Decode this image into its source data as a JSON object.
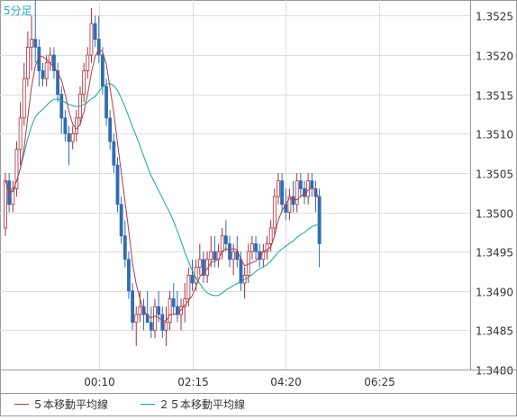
{
  "chart_data": {
    "type": "candlestick",
    "timeframe": "5分足",
    "ylim": [
      1.348,
      1.3527
    ],
    "y_ticks": [
      "1.3525",
      "1.3520",
      "1.3515",
      "1.3510",
      "1.3505",
      "1.3500",
      "1.3495",
      "1.3490",
      "1.3485",
      "1.3480"
    ],
    "x_ticks": [
      "00:10",
      "02:15",
      "04:20",
      "06:25"
    ],
    "x_tick_index": [
      25,
      50,
      75,
      100
    ],
    "legend": [
      {
        "name": "５本移動平均線",
        "color": "#b03a4a"
      },
      {
        "name": "２５本移動平均線",
        "color": "#1aa39a"
      }
    ],
    "colors": {
      "up": "#ffffff",
      "up_border": "#aa2d3c",
      "down": "#2f6db5",
      "grid": "#dddddd",
      "frame": "#999999",
      "label": "#333333"
    },
    "candles": [
      [
        1.3498,
        1.3505,
        1.3497,
        1.3504
      ],
      [
        1.3504,
        1.3505,
        1.35,
        1.3501
      ],
      [
        1.3501,
        1.3504,
        1.35,
        1.3503
      ],
      [
        1.3503,
        1.3509,
        1.3502,
        1.3508
      ],
      [
        1.3508,
        1.3514,
        1.3506,
        1.3512
      ],
      [
        1.3512,
        1.3519,
        1.3511,
        1.3517
      ],
      [
        1.3517,
        1.3523,
        1.3516,
        1.3521
      ],
      [
        1.3521,
        1.3525,
        1.3518,
        1.3522
      ],
      [
        1.3522,
        1.3527,
        1.3519,
        1.3521
      ],
      [
        1.3521,
        1.3522,
        1.3516,
        1.3518
      ],
      [
        1.3518,
        1.3519,
        1.3516,
        1.3517
      ],
      [
        1.3517,
        1.352,
        1.3516,
        1.3519
      ],
      [
        1.3519,
        1.3521,
        1.3518,
        1.352
      ],
      [
        1.352,
        1.3521,
        1.3517,
        1.3518
      ],
      [
        1.3518,
        1.3519,
        1.3514,
        1.3515
      ],
      [
        1.3515,
        1.3516,
        1.351,
        1.3512
      ],
      [
        1.3512,
        1.3513,
        1.3509,
        1.351
      ],
      [
        1.351,
        1.3511,
        1.3506,
        1.3509
      ],
      [
        1.3509,
        1.3511,
        1.3508,
        1.351
      ],
      [
        1.351,
        1.3513,
        1.3509,
        1.3512
      ],
      [
        1.3512,
        1.3516,
        1.3511,
        1.3515
      ],
      [
        1.3515,
        1.3519,
        1.3514,
        1.3518
      ],
      [
        1.3518,
        1.3521,
        1.3517,
        1.352
      ],
      [
        1.352,
        1.3526,
        1.3519,
        1.3524
      ],
      [
        1.3524,
        1.3525,
        1.3521,
        1.3522
      ],
      [
        1.3522,
        1.3525,
        1.3519,
        1.352
      ],
      [
        1.352,
        1.3521,
        1.3515,
        1.3516
      ],
      [
        1.3516,
        1.3517,
        1.3511,
        1.3512
      ],
      [
        1.3512,
        1.3513,
        1.3508,
        1.3509
      ],
      [
        1.3509,
        1.351,
        1.3505,
        1.3506
      ],
      [
        1.3506,
        1.3507,
        1.35,
        1.3501
      ],
      [
        1.3501,
        1.3502,
        1.3496,
        1.3497
      ],
      [
        1.3497,
        1.3499,
        1.3493,
        1.3494
      ],
      [
        1.3494,
        1.3495,
        1.3489,
        1.349
      ],
      [
        1.349,
        1.3491,
        1.3485,
        1.3486
      ],
      [
        1.3486,
        1.3488,
        1.3483,
        1.3487
      ],
      [
        1.3487,
        1.349,
        1.3486,
        1.3488
      ],
      [
        1.3488,
        1.3489,
        1.3485,
        1.3487
      ],
      [
        1.3487,
        1.349,
        1.3486,
        1.3486
      ],
      [
        1.3486,
        1.3488,
        1.3484,
        1.3485
      ],
      [
        1.3485,
        1.3489,
        1.3484,
        1.3488
      ],
      [
        1.3488,
        1.349,
        1.3486,
        1.3487
      ],
      [
        1.3487,
        1.3488,
        1.3484,
        1.3485
      ],
      [
        1.3485,
        1.3488,
        1.3483,
        1.3486
      ],
      [
        1.3486,
        1.349,
        1.3485,
        1.3489
      ],
      [
        1.3489,
        1.3491,
        1.3487,
        1.3488
      ],
      [
        1.3488,
        1.349,
        1.3486,
        1.3487
      ],
      [
        1.3487,
        1.3489,
        1.3485,
        1.3488
      ],
      [
        1.3488,
        1.3491,
        1.3486,
        1.3489
      ],
      [
        1.3489,
        1.3493,
        1.3488,
        1.3492
      ],
      [
        1.3492,
        1.3494,
        1.349,
        1.3491
      ],
      [
        1.3491,
        1.3494,
        1.349,
        1.3493
      ],
      [
        1.3493,
        1.3496,
        1.3492,
        1.3494
      ],
      [
        1.3494,
        1.3495,
        1.3491,
        1.3492
      ],
      [
        1.3492,
        1.3495,
        1.3491,
        1.3494
      ],
      [
        1.3494,
        1.3497,
        1.3493,
        1.3495
      ],
      [
        1.3495,
        1.3497,
        1.3493,
        1.3494
      ],
      [
        1.3494,
        1.3496,
        1.3493,
        1.3495
      ],
      [
        1.3495,
        1.3498,
        1.3494,
        1.3497
      ],
      [
        1.3497,
        1.3499,
        1.3495,
        1.3496
      ],
      [
        1.3496,
        1.3497,
        1.3493,
        1.3494
      ],
      [
        1.3494,
        1.3496,
        1.3492,
        1.3495
      ],
      [
        1.3495,
        1.3497,
        1.3493,
        1.3494
      ],
      [
        1.3494,
        1.3495,
        1.349,
        1.3491
      ],
      [
        1.3491,
        1.3493,
        1.3489,
        1.3492
      ],
      [
        1.3492,
        1.3496,
        1.3491,
        1.3495
      ],
      [
        1.3495,
        1.3497,
        1.3494,
        1.3496
      ],
      [
        1.3496,
        1.3497,
        1.3494,
        1.3495
      ],
      [
        1.3495,
        1.3496,
        1.3493,
        1.3494
      ],
      [
        1.3494,
        1.3496,
        1.3493,
        1.3495
      ],
      [
        1.3495,
        1.3497,
        1.3494,
        1.3496
      ],
      [
        1.3496,
        1.3499,
        1.3495,
        1.3498
      ],
      [
        1.3498,
        1.3503,
        1.3497,
        1.3502
      ],
      [
        1.3502,
        1.3505,
        1.3501,
        1.3504
      ],
      [
        1.3504,
        1.3505,
        1.35,
        1.3501
      ],
      [
        1.3501,
        1.3503,
        1.3499,
        1.35
      ],
      [
        1.35,
        1.3503,
        1.3499,
        1.3502
      ],
      [
        1.3502,
        1.3504,
        1.35,
        1.3501
      ],
      [
        1.3501,
        1.3505,
        1.35,
        1.3504
      ],
      [
        1.3504,
        1.3505,
        1.3502,
        1.3503
      ],
      [
        1.3503,
        1.3504,
        1.3501,
        1.3502
      ],
      [
        1.3502,
        1.3505,
        1.3501,
        1.3504
      ],
      [
        1.3504,
        1.3505,
        1.3502,
        1.3503
      ],
      [
        1.3503,
        1.3504,
        1.35,
        1.3502
      ],
      [
        1.3502,
        1.3503,
        1.3493,
        1.3496
      ]
    ]
  }
}
